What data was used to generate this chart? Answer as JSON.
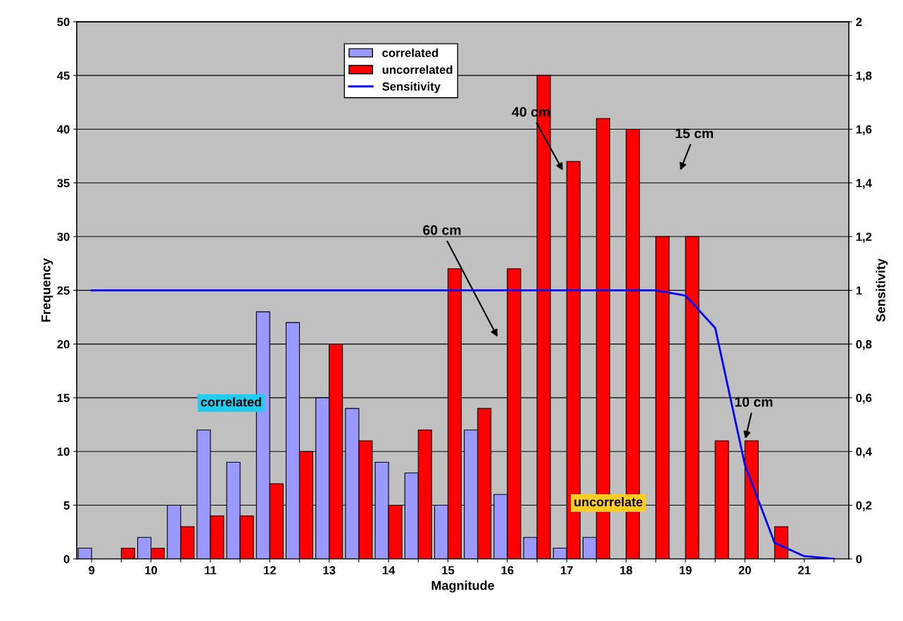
{
  "chart_data": {
    "type": "bar",
    "xlabel": "Magnitude",
    "ylabel": "Frequency",
    "y2label": "Sensitivity",
    "categories": [
      "9",
      null,
      "10",
      null,
      "11",
      null,
      "12",
      null,
      "13",
      null,
      "14",
      null,
      "15",
      null,
      "16",
      null,
      "17",
      null,
      "18",
      null,
      "19",
      null,
      "20",
      null,
      "21",
      null
    ],
    "series": [
      {
        "name": "correlated",
        "color": "#9999ff",
        "values": [
          1,
          null,
          2,
          5,
          12,
          9,
          23,
          22,
          15,
          14,
          9,
          8,
          5,
          12,
          6,
          2,
          1,
          2,
          null,
          null,
          null,
          null,
          null,
          null,
          null,
          null
        ]
      },
      {
        "name": "uncorrelated",
        "color": "#ff0000",
        "values": [
          null,
          1,
          1,
          3,
          4,
          4,
          7,
          10,
          20,
          11,
          5,
          12,
          27,
          14,
          27,
          45,
          37,
          41,
          40,
          30,
          30,
          11,
          11,
          3,
          null,
          null
        ]
      },
      {
        "name": "Sensitivity",
        "type": "line",
        "axis": "y2",
        "color": "#0000ff",
        "values": [
          1,
          1,
          1,
          1,
          1,
          1,
          1,
          1,
          1,
          1,
          1,
          1,
          1,
          1,
          1,
          1,
          1,
          1,
          1,
          1,
          0.98,
          0.86,
          0.35,
          0.06,
          0.01,
          0
        ]
      }
    ],
    "ylim": [
      0,
      50
    ],
    "yticks": [
      0,
      5,
      10,
      15,
      20,
      25,
      30,
      35,
      40,
      45,
      50
    ],
    "y2lim": [
      0,
      2
    ],
    "y2ticks": [
      0,
      {
        "value": 0.2,
        "label": "0,2"
      },
      {
        "value": 0.4,
        "label": "0,4"
      },
      {
        "value": 0.6,
        "label": "0,6"
      },
      {
        "value": 0.8,
        "label": "0,8"
      },
      1,
      {
        "value": 1.2,
        "label": "1,2"
      },
      {
        "value": 1.4,
        "label": "1,4"
      },
      {
        "value": 1.6,
        "label": "1,6"
      },
      {
        "value": 1.8,
        "label": "1,8"
      },
      2
    ],
    "grid": "y",
    "legend": "top",
    "marker": "none",
    "annotations": [
      "60 cm",
      "40 cm",
      "15 cm",
      {
        "text": "10 cm",
        "x": "20",
        "y": 11
      },
      "correlated",
      "uncorrelate"
    ]
  }
}
